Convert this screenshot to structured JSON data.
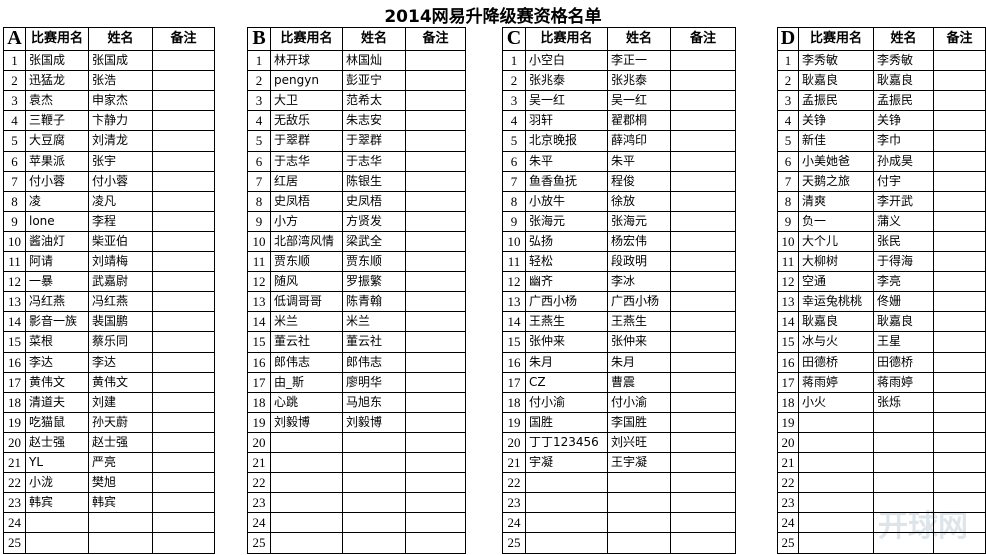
{
  "title": "2014网易升降级赛资格名单",
  "watermark": "开球网",
  "tables": [
    {
      "letter": "A",
      "headers": [
        "比赛用名",
        "姓名",
        "备注"
      ],
      "rows": [
        {
          "no": 1,
          "nick": "张国成",
          "name": "张国成"
        },
        {
          "no": 2,
          "nick": "迅猛龙",
          "name": "张浩"
        },
        {
          "no": 3,
          "nick": "袁杰",
          "name": "申家杰"
        },
        {
          "no": 4,
          "nick": "三鞭子",
          "name": "卞静力"
        },
        {
          "no": 5,
          "nick": "大豆腐",
          "name": "刘清龙"
        },
        {
          "no": 6,
          "nick": "苹果派",
          "name": "张宇"
        },
        {
          "no": 7,
          "nick": "付小蓉",
          "name": "付小蓉"
        },
        {
          "no": 8,
          "nick": "凌",
          "name": "凌凡"
        },
        {
          "no": 9,
          "nick": "lone",
          "name": "李程"
        },
        {
          "no": 10,
          "nick": "酱油灯",
          "name": "柴亚伯"
        },
        {
          "no": 11,
          "nick": "阿请",
          "name": "刘靖梅"
        },
        {
          "no": 12,
          "nick": "一暴",
          "name": "武嘉尉"
        },
        {
          "no": 13,
          "nick": "冯红燕",
          "name": "冯红燕"
        },
        {
          "no": 14,
          "nick": "影音一族",
          "name": "裴国鹏"
        },
        {
          "no": 15,
          "nick": "菜根",
          "name": "蔡乐同"
        },
        {
          "no": 16,
          "nick": "李达",
          "name": "李达"
        },
        {
          "no": 17,
          "nick": "黄伟文",
          "name": "黄伟文"
        },
        {
          "no": 18,
          "nick": "清道夫",
          "name": "刘建"
        },
        {
          "no": 19,
          "nick": "吃猫鼠",
          "name": "孙天蔚"
        },
        {
          "no": 20,
          "nick": "赵士强",
          "name": "赵士强"
        },
        {
          "no": 21,
          "nick": "YL",
          "name": "严亮"
        },
        {
          "no": 22,
          "nick": "小泷",
          "name": "樊旭"
        },
        {
          "no": 23,
          "nick": "韩宾",
          "name": "韩宾"
        },
        {
          "no": 24
        },
        {
          "no": 25
        }
      ]
    },
    {
      "letter": "B",
      "headers": [
        "比赛用名",
        "姓名",
        "备注"
      ],
      "rows": [
        {
          "no": 1,
          "nick": "林开球",
          "name": "林国灿"
        },
        {
          "no": 2,
          "nick": "pengyn",
          "name": "彭亚宁"
        },
        {
          "no": 3,
          "nick": "大卫",
          "name": "范希太"
        },
        {
          "no": 4,
          "nick": "无敌乐",
          "name": "朱志安"
        },
        {
          "no": 5,
          "nick": "于翠群",
          "name": "于翠群"
        },
        {
          "no": 6,
          "nick": "于志华",
          "name": "于志华"
        },
        {
          "no": 7,
          "nick": "红居",
          "name": "陈银生"
        },
        {
          "no": 8,
          "nick": "史凤梧",
          "name": "史凤梧"
        },
        {
          "no": 9,
          "nick": "小方",
          "name": "方贤发"
        },
        {
          "no": 10,
          "nick": "北部湾风情",
          "name": "梁武全"
        },
        {
          "no": 11,
          "nick": "贾东顺",
          "name": "贾东顺"
        },
        {
          "no": 12,
          "nick": "随风",
          "name": "罗振繁"
        },
        {
          "no": 13,
          "nick": "低调哥哥",
          "name": "陈青翰"
        },
        {
          "no": 14,
          "nick": "米兰",
          "name": "米兰"
        },
        {
          "no": 15,
          "nick": "董云社",
          "name": "董云社"
        },
        {
          "no": 16,
          "nick": "郎伟志",
          "name": "郎伟志"
        },
        {
          "no": 17,
          "nick": "由_斯",
          "name": "廖明华"
        },
        {
          "no": 18,
          "nick": "心跳",
          "name": "马旭东"
        },
        {
          "no": 19,
          "nick": "刘毅博",
          "name": "刘毅博"
        },
        {
          "no": 20
        },
        {
          "no": 21
        },
        {
          "no": 22
        },
        {
          "no": 23
        },
        {
          "no": 24
        },
        {
          "no": 25
        }
      ]
    },
    {
      "letter": "C",
      "headers": [
        "比赛用名",
        "姓名",
        "备注"
      ],
      "rows": [
        {
          "no": 1,
          "nick": "小空白",
          "name": "李正一"
        },
        {
          "no": 2,
          "nick": "张兆泰",
          "name": "张兆泰"
        },
        {
          "no": 3,
          "nick": "吴一红",
          "name": "吴一红"
        },
        {
          "no": 4,
          "nick": "羽轩",
          "name": "翟郡桐"
        },
        {
          "no": 5,
          "nick": "北京晚报",
          "name": "薛鸿印"
        },
        {
          "no": 6,
          "nick": "朱平",
          "name": "朱平"
        },
        {
          "no": 7,
          "nick": "鱼香鱼抚",
          "name": "程俊"
        },
        {
          "no": 8,
          "nick": "小放牛",
          "name": "徐放"
        },
        {
          "no": 9,
          "nick": "张海元",
          "name": "张海元"
        },
        {
          "no": 10,
          "nick": "弘扬",
          "name": "杨宏伟"
        },
        {
          "no": 11,
          "nick": "轻松",
          "name": "段政明"
        },
        {
          "no": 12,
          "nick": "幽齐",
          "name": "李冰"
        },
        {
          "no": 13,
          "nick": "广西小杨",
          "name": "广西小杨"
        },
        {
          "no": 14,
          "nick": "王燕生",
          "name": "王燕生"
        },
        {
          "no": 15,
          "nick": "张仲来",
          "name": "张仲来"
        },
        {
          "no": 16,
          "nick": "朱月",
          "name": "朱月"
        },
        {
          "no": 17,
          "nick": "CZ",
          "name": "曹震"
        },
        {
          "no": 18,
          "nick": "付小渝",
          "name": "付小渝"
        },
        {
          "no": 19,
          "nick": "国胜",
          "name": "李国胜"
        },
        {
          "no": 20,
          "nick": "丁丁123456",
          "name": "刘兴旺"
        },
        {
          "no": 21,
          "nick": "宇凝",
          "name": "王宇凝"
        },
        {
          "no": 22
        },
        {
          "no": 23
        },
        {
          "no": 24
        },
        {
          "no": 25
        }
      ]
    },
    {
      "letter": "D",
      "headers": [
        "比赛用名",
        "姓名",
        "备注"
      ],
      "rows": [
        {
          "no": 1,
          "nick": "李秀敏",
          "name": "李秀敏"
        },
        {
          "no": 2,
          "nick": "耿嘉良",
          "name": "耿嘉良"
        },
        {
          "no": 3,
          "nick": "孟振民",
          "name": "孟振民"
        },
        {
          "no": 4,
          "nick": "关铮",
          "name": "关铮"
        },
        {
          "no": 5,
          "nick": "新佳",
          "name": "李巾"
        },
        {
          "no": 6,
          "nick": "小美她爸",
          "name": "孙成昊"
        },
        {
          "no": 7,
          "nick": "天鹅之旅",
          "name": "付宇"
        },
        {
          "no": 8,
          "nick": "清爽",
          "name": "李开武"
        },
        {
          "no": 9,
          "nick": "负一",
          "name": "蒲义"
        },
        {
          "no": 10,
          "nick": "大个儿",
          "name": "张民"
        },
        {
          "no": 11,
          "nick": "大柳树",
          "name": "于得海"
        },
        {
          "no": 12,
          "nick": "空通",
          "name": "李亮"
        },
        {
          "no": 13,
          "nick": "幸运兔桃桃",
          "name": "佟姗"
        },
        {
          "no": 14,
          "nick": "耿嘉良",
          "name": "耿嘉良"
        },
        {
          "no": 15,
          "nick": "冰与火",
          "name": "王星"
        },
        {
          "no": 16,
          "nick": "田德桥",
          "name": "田德桥"
        },
        {
          "no": 17,
          "nick": "蒋雨婷",
          "name": "蒋雨婷"
        },
        {
          "no": 18,
          "nick": "小火",
          "name": "张烁"
        },
        {
          "no": 19
        },
        {
          "no": 20
        },
        {
          "no": 21
        },
        {
          "no": 22
        },
        {
          "no": 23
        },
        {
          "no": 24
        },
        {
          "no": 25
        }
      ]
    }
  ]
}
